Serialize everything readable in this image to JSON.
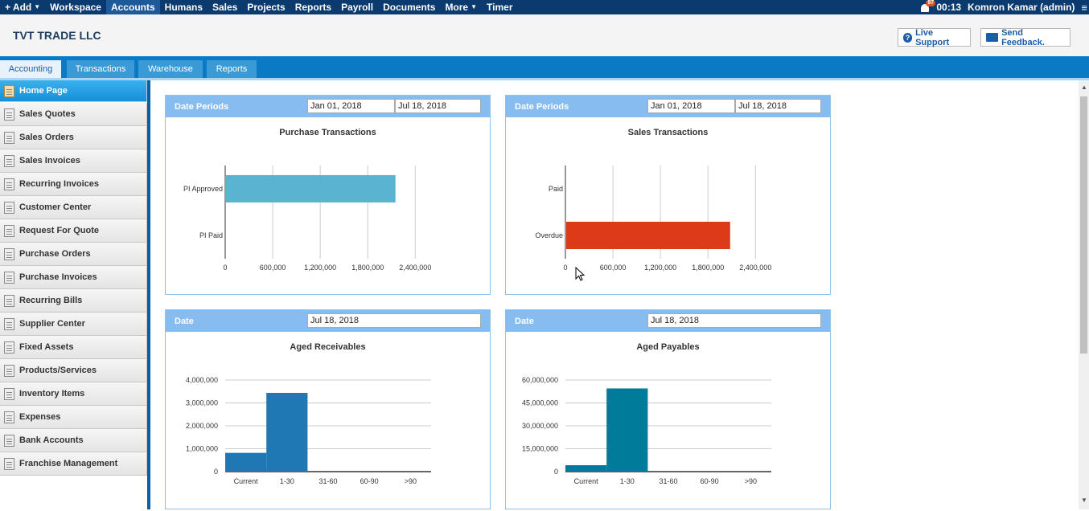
{
  "topbar": {
    "menu": [
      "+ Add",
      "Workspace",
      "Accounts",
      "Humans",
      "Sales",
      "Projects",
      "Reports",
      "Payroll",
      "Documents",
      "More",
      "Timer"
    ],
    "active": "Accounts",
    "notif_count": "97",
    "time": "00:13",
    "user": "Komron Kamar (admin)"
  },
  "header": {
    "company": "TVT TRADE LLC",
    "live_support": "Live Support",
    "send_feedback": "Send Feedback."
  },
  "tabs": [
    "Accounting",
    "Transactions",
    "Warehouse",
    "Reports"
  ],
  "sidebar": {
    "items": [
      "Home Page",
      "Sales Quotes",
      "Sales Orders",
      "Sales Invoices",
      "Recurring Invoices",
      "Customer Center",
      "Request For Quote",
      "Purchase Orders",
      "Purchase Invoices",
      "Recurring Bills",
      "Supplier Center",
      "Fixed Assets",
      "Products/Services",
      "Inventory Items",
      "Expenses",
      "Bank Accounts",
      "Franchise Management"
    ]
  },
  "panels": {
    "purchase": {
      "head": "Date Periods",
      "from": "Jan 01, 2018",
      "to": "Jul 18, 2018",
      "title": "Purchase Transactions"
    },
    "sales": {
      "head": "Date Periods",
      "from": "Jan 01, 2018",
      "to": "Jul 18, 2018",
      "title": "Sales Transactions"
    },
    "receivables": {
      "head": "Date",
      "date": "Jul 18, 2018",
      "title": "Aged Receivables"
    },
    "payables": {
      "head": "Date",
      "date": "Jul 18, 2018",
      "title": "Aged Payables"
    }
  },
  "chart_data": [
    {
      "type": "bar",
      "orientation": "horizontal",
      "title": "Purchase Transactions",
      "categories": [
        "PI Approved",
        "PI Paid"
      ],
      "values": [
        2150000,
        0
      ],
      "xlim": [
        0,
        2600000
      ],
      "ticks": [
        "0",
        "600,000",
        "1,200,000",
        "1,800,000",
        "2,400,000"
      ],
      "color": "#5ab3d1"
    },
    {
      "type": "bar",
      "orientation": "horizontal",
      "title": "Sales Transactions",
      "categories": [
        "Paid",
        "Overdue"
      ],
      "values": [
        0,
        2080000
      ],
      "xlim": [
        0,
        2600000
      ],
      "ticks": [
        "0",
        "600,000",
        "1,200,000",
        "1,800,000",
        "2,400,000"
      ],
      "color": "#dd3a1a"
    },
    {
      "type": "bar",
      "title": "Aged Receivables",
      "categories": [
        "Current",
        "1-30",
        "31-60",
        "60-90",
        ">90"
      ],
      "values": [
        820000,
        3440000,
        0,
        0,
        0
      ],
      "ylim": [
        0,
        4000000
      ],
      "ticks": [
        "0",
        "1,000,000",
        "2,000,000",
        "3,000,000",
        "4,000,000"
      ],
      "color": "#1f77b4"
    },
    {
      "type": "bar",
      "title": "Aged Payables",
      "categories": [
        "Current",
        "1-30",
        "31-60",
        "60-90",
        ">90"
      ],
      "values": [
        4200000,
        54500000,
        0,
        0,
        0
      ],
      "ylim": [
        0,
        60000000
      ],
      "ticks": [
        "0",
        "15,000,000",
        "30,000,000",
        "45,000,000",
        "60,000,000"
      ],
      "color": "#007b9a"
    }
  ]
}
